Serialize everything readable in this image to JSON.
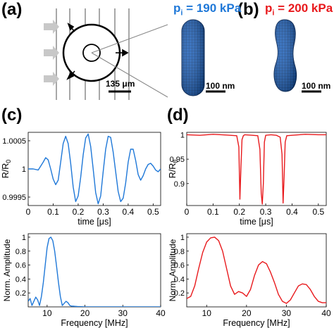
{
  "panels": {
    "a": {
      "label": "(a)",
      "pressure_prefix": "p",
      "pressure_sub": "i",
      "pressure_value": " = 190 kPa",
      "pressure_color": "#1f78d8",
      "scale_label": "135 μm",
      "nm_scale_label": "100 nm",
      "bubble_color": "#1c5fb8"
    },
    "b": {
      "label": "(b)",
      "pressure_prefix": "p",
      "pressure_sub": "i",
      "pressure_value": " = 200 kPa",
      "pressure_color": "#e8191c",
      "nm_scale_label": "100 nm",
      "bubble_color": "#1c5fb8"
    },
    "c": {
      "label": "(c)"
    },
    "d": {
      "label": "(d)"
    }
  },
  "chart_data": [
    {
      "id": "c_top",
      "type": "line",
      "color": "#1f78d8",
      "ylabel_main": "R/R",
      "ylabel_sub": "0",
      "xlabel": "time [μs]",
      "xlim": [
        0,
        0.53
      ],
      "ylim": [
        0.99935,
        1.00065
      ],
      "xticks": [
        0,
        0.1,
        0.2,
        0.3,
        0.4,
        0.5
      ],
      "xtick_labels": [
        "0",
        "0.1",
        "0.2",
        "0.3",
        "0.4",
        "0.5"
      ],
      "yticks": [
        0.9995,
        1.0,
        1.0005
      ],
      "ytick_labels": [
        "0.9995",
        "1",
        "1.0005"
      ],
      "series": [
        {
          "x": [
            0,
            0.02,
            0.04,
            0.06,
            0.07,
            0.08,
            0.09,
            0.1,
            0.11,
            0.12,
            0.13,
            0.14,
            0.15,
            0.16,
            0.17,
            0.18,
            0.19,
            0.2,
            0.21,
            0.22,
            0.23,
            0.24,
            0.25,
            0.26,
            0.27,
            0.28,
            0.29,
            0.3,
            0.31,
            0.32,
            0.33,
            0.34,
            0.35,
            0.36,
            0.37,
            0.38,
            0.39,
            0.4,
            0.41,
            0.42,
            0.43,
            0.44,
            0.45,
            0.46,
            0.47,
            0.48,
            0.49,
            0.5,
            0.51,
            0.52,
            0.53
          ],
          "y": [
            1.0,
            1.0,
            0.99998,
            1.00012,
            1.0002,
            1.00016,
            1.0,
            0.99982,
            0.99972,
            0.9998,
            1.00012,
            1.00045,
            1.00058,
            1.00045,
            1.0001,
            0.99968,
            0.99942,
            0.99952,
            0.99985,
            1.00025,
            1.00055,
            1.00062,
            1.0004,
            1.0,
            0.99958,
            0.99938,
            0.99952,
            0.99995,
            1.00035,
            1.00058,
            1.00056,
            1.0003,
            0.99995,
            0.9996,
            0.99942,
            0.99948,
            0.99975,
            1.00012,
            1.00035,
            1.00035,
            1.00015,
            0.9999,
            0.9998,
            0.99988,
            1.0,
            1.00008,
            1.0001,
            1.00005,
            0.99998,
            0.99995,
            1.0
          ]
        }
      ]
    },
    {
      "id": "c_bottom",
      "type": "line",
      "color": "#1f78d8",
      "ylabel": "Norm. Amplitude",
      "xlabel": "Frequency [MHz]",
      "xlim": [
        5,
        40
      ],
      "ylim": [
        0,
        1.05
      ],
      "xticks": [
        10,
        20,
        30,
        40
      ],
      "xtick_labels": [
        "10",
        "20",
        "30",
        "40"
      ],
      "yticks": [
        0.2,
        0.4,
        0.6,
        0.8,
        1.0
      ],
      "ytick_labels": [
        "0.2",
        "0.4",
        "0.6",
        "0.8",
        "1"
      ],
      "series": [
        {
          "x": [
            5,
            5.5,
            6,
            6.5,
            7,
            7.5,
            8,
            8.5,
            9,
            9.5,
            10,
            10.5,
            11,
            11.5,
            12,
            12.5,
            13,
            13.5,
            14,
            14.5,
            15,
            15.5,
            16,
            16.5,
            17,
            18,
            20,
            25,
            30,
            35,
            40
          ],
          "y": [
            0.08,
            0.12,
            0.02,
            0.08,
            0.14,
            0.1,
            0.02,
            0.15,
            0.35,
            0.6,
            0.85,
            0.98,
            1.0,
            0.95,
            0.8,
            0.58,
            0.35,
            0.15,
            0.02,
            0.05,
            0.08,
            0.06,
            0.02,
            0.01,
            0.01,
            0.005,
            0.0,
            0.0,
            0.0,
            0.0,
            0.0
          ]
        }
      ]
    },
    {
      "id": "d_top",
      "type": "line",
      "color": "#e8191c",
      "ylabel_main": "R/R",
      "ylabel_sub": "0",
      "xlabel": "time [μs]",
      "xlim": [
        0,
        0.53
      ],
      "ylim": [
        0.855,
        1.005
      ],
      "xticks": [
        0,
        0.1,
        0.2,
        0.3,
        0.4,
        0.5
      ],
      "xtick_labels": [
        "0",
        "0.1",
        "0.2",
        "0.3",
        "0.4",
        "0.5"
      ],
      "yticks": [
        0.9,
        0.95,
        1.0
      ],
      "ytick_labels": [
        "0.9",
        "0.95",
        "1"
      ],
      "series": [
        {
          "x": [
            0,
            0.05,
            0.1,
            0.15,
            0.19,
            0.198,
            0.202,
            0.206,
            0.21,
            0.215,
            0.22,
            0.25,
            0.27,
            0.278,
            0.283,
            0.287,
            0.291,
            0.295,
            0.3,
            0.32,
            0.34,
            0.355,
            0.362,
            0.366,
            0.37,
            0.374,
            0.38,
            0.4,
            0.45,
            0.5,
            0.53
          ],
          "y": [
            1.0,
            0.999,
            1.001,
            0.9995,
            0.998,
            0.975,
            0.868,
            0.935,
            0.99,
            0.998,
            1.0,
            0.999,
            0.998,
            0.97,
            0.88,
            0.858,
            0.9,
            0.985,
            0.999,
            1.0,
            0.999,
            0.995,
            0.96,
            0.86,
            0.915,
            0.985,
            0.998,
            0.999,
            1.001,
            1.0,
            1.0
          ]
        }
      ]
    },
    {
      "id": "d_bottom",
      "type": "line",
      "color": "#e8191c",
      "ylabel": "Norm. Amplitude",
      "xlabel": "Frequency [MHz]",
      "xlim": [
        5,
        40
      ],
      "ylim": [
        0,
        1.05
      ],
      "xticks": [
        10,
        20,
        30,
        40
      ],
      "xtick_labels": [
        "10",
        "20",
        "30",
        "40"
      ],
      "yticks": [
        0.2,
        0.4,
        0.6,
        0.8,
        1.0
      ],
      "ytick_labels": [
        "0.2",
        "0.4",
        "0.6",
        "0.8",
        "1"
      ],
      "series": [
        {
          "x": [
            5,
            6,
            7,
            8,
            9,
            10,
            11,
            12,
            13,
            14,
            15,
            16,
            17,
            18,
            19,
            20,
            21,
            22,
            23,
            24,
            25,
            26,
            27,
            28,
            29,
            30,
            31,
            32,
            33,
            34,
            35,
            36,
            37,
            38,
            39,
            40
          ],
          "y": [
            0.12,
            0.15,
            0.3,
            0.55,
            0.78,
            0.93,
            0.99,
            1.0,
            0.95,
            0.8,
            0.55,
            0.3,
            0.18,
            0.22,
            0.2,
            0.15,
            0.25,
            0.45,
            0.6,
            0.65,
            0.62,
            0.5,
            0.35,
            0.18,
            0.08,
            0.05,
            0.1,
            0.2,
            0.3,
            0.33,
            0.32,
            0.25,
            0.15,
            0.08,
            0.06,
            0.06
          ]
        }
      ]
    }
  ]
}
